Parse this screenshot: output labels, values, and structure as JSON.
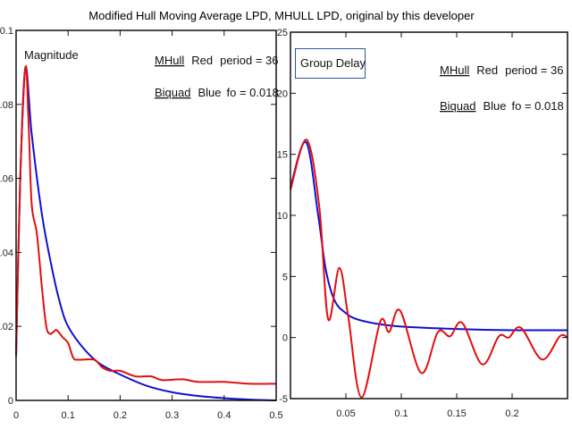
{
  "title": "Modified Hull Moving Average LPD, MHULL LPD, original by this developer",
  "chart_data": [
    {
      "type": "line",
      "label": "Magnitude",
      "legend": [
        {
          "name": "MHull",
          "color_word": "Red",
          "param": "period = 36"
        },
        {
          "name": "Biquad",
          "color_word": "Blue",
          "param": "fo = 0.018"
        }
      ],
      "xlim": [
        0,
        0.5
      ],
      "ylim": [
        0,
        0.1
      ],
      "xticks": [
        "0",
        "0.1",
        "0.2",
        "0.3",
        "0.4",
        "0.5"
      ],
      "yticks": [
        "0",
        "0.02",
        "0.04",
        "0.06",
        "0.08",
        "0.1"
      ],
      "series": [
        {
          "name": "MHull",
          "color": "#e01010",
          "x": [
            0,
            0.008,
            0.018,
            0.024,
            0.03,
            0.04,
            0.05,
            0.058,
            0.065,
            0.072,
            0.078,
            0.09,
            0.1,
            0.11,
            0.12,
            0.15,
            0.165,
            0.18,
            0.2,
            0.23,
            0.26,
            0.28,
            0.32,
            0.35,
            0.4,
            0.45,
            0.5
          ],
          "y": [
            0.012,
            0.06,
            0.09,
            0.075,
            0.053,
            0.045,
            0.03,
            0.02,
            0.018,
            0.0185,
            0.019,
            0.017,
            0.0155,
            0.0115,
            0.011,
            0.011,
            0.009,
            0.008,
            0.008,
            0.0065,
            0.0065,
            0.0055,
            0.0057,
            0.005,
            0.005,
            0.0045,
            0.0045
          ]
        },
        {
          "name": "Biquad",
          "color": "#1010d0",
          "x": [
            0,
            0.008,
            0.018,
            0.03,
            0.05,
            0.07,
            0.085,
            0.1,
            0.13,
            0.16,
            0.2,
            0.25,
            0.3,
            0.35,
            0.4,
            0.45,
            0.5
          ],
          "y": [
            0.012,
            0.06,
            0.09,
            0.072,
            0.05,
            0.035,
            0.026,
            0.02,
            0.014,
            0.01,
            0.007,
            0.004,
            0.0022,
            0.0012,
            0.0006,
            0.0002,
            0
          ]
        }
      ]
    },
    {
      "type": "line",
      "label": "Group Delay",
      "legend": [
        {
          "name": "MHull",
          "color_word": "Red",
          "param": "period = 36"
        },
        {
          "name": "Biquad",
          "color_word": "Blue",
          "param": "fo = 0.018"
        }
      ],
      "xlim": [
        0,
        0.25
      ],
      "ylim": [
        -5,
        25
      ],
      "xticks": [
        "0.05",
        "0.1",
        "0.15",
        "0.2"
      ],
      "yticks": [
        "-5",
        "0",
        "5",
        "10",
        "15",
        "20",
        "25"
      ],
      "series": [
        {
          "name": "MHull",
          "color": "#e01010",
          "x": [
            0,
            0.0145,
            0.026,
            0.034,
            0.044,
            0.052,
            0.064,
            0.081,
            0.089,
            0.099,
            0.118,
            0.133,
            0.144,
            0.155,
            0.173,
            0.188,
            0.197,
            0.208,
            0.227,
            0.243,
            0.25
          ],
          "y": [
            12.1,
            16.2,
            10.7,
            1.5,
            5.7,
            1.8,
            -4.9,
            1.3,
            0.45,
            2.2,
            -2.9,
            0.45,
            0.1,
            1.2,
            -2.2,
            0.1,
            0,
            0.8,
            -1.8,
            0.1,
            0
          ]
        },
        {
          "name": "Biquad",
          "color": "#1010d0",
          "x": [
            0,
            0.014,
            0.025,
            0.032,
            0.04,
            0.05,
            0.06,
            0.08,
            0.1,
            0.15,
            0.2,
            0.25
          ],
          "y": [
            12.3,
            16,
            10,
            5.5,
            3,
            2,
            1.5,
            1.1,
            0.9,
            0.7,
            0.6,
            0.6
          ]
        }
      ]
    }
  ]
}
